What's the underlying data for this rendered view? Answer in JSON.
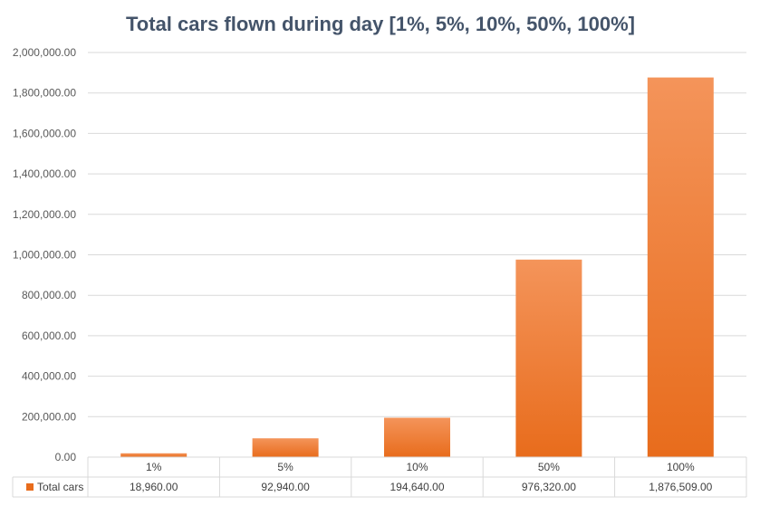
{
  "chart_data": {
    "type": "bar",
    "title": "Total cars flown during day [1%, 5%, 10%, 50%, 100%]",
    "categories": [
      "1%",
      "5%",
      "10%",
      "50%",
      "100%"
    ],
    "series": [
      {
        "name": "Total cars",
        "values": [
          18960,
          92940,
          194640,
          976320,
          1876509
        ],
        "value_labels": [
          "18,960.00",
          "92,940.00",
          "194,640.00",
          "976,320.00",
          "1,876,509.00"
        ]
      }
    ],
    "ylim": [
      0,
      2000000
    ],
    "ytick_labels": [
      "0.00",
      "200,000.00",
      "400,000.00",
      "600,000.00",
      "800,000.00",
      "1,000,000.00",
      "1,200,000.00",
      "1,400,000.00",
      "1,600,000.00",
      "1,800,000.00",
      "2,000,000.00"
    ],
    "grid": true,
    "legend": "data-table",
    "xlabel": "",
    "ylabel": ""
  },
  "colors": {
    "bar_top": "#f4945a",
    "bar_bottom": "#e86c1c",
    "grid": "#d9d9d9",
    "title": "#44546a"
  }
}
